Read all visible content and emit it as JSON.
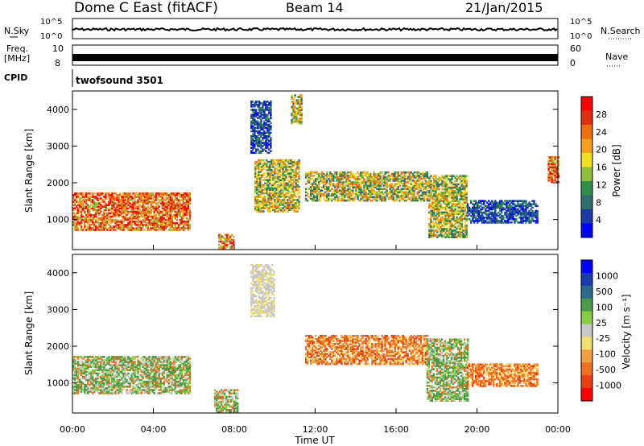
{
  "header": {
    "station": "Dome C East (fitACF)",
    "beam": "Beam 14",
    "date": "21/Jan/2015"
  },
  "top_panels": {
    "nsky_label": "N.Sky",
    "nsearch_label": "N.Search",
    "log_high": "10^5",
    "log_low": "10^0",
    "freq_label": "Freq.",
    "freq_unit": "[MHz]",
    "freq_high": "10",
    "freq_low": "8",
    "nave_high": "60",
    "nave_low": "0",
    "nave_label": "Nave",
    "cpid_label": "CPID",
    "cpid_value": "twofsound 3501"
  },
  "colors": {
    "power": [
      "#0000ff",
      "#1a3aa8",
      "#2e6e6e",
      "#2f8f4a",
      "#8fbf3a",
      "#f0e020",
      "#f5a020",
      "#f07010",
      "#e03010",
      "#ff0000"
    ],
    "velocity": [
      "#ff0000",
      "#e84010",
      "#ee7020",
      "#f0a040",
      "#f0e070",
      "#c8c8c8",
      "#88cc44",
      "#4a9a4a",
      "#2a6a8a",
      "#1a3ab0",
      "#0000ff"
    ]
  },
  "chart_data": [
    {
      "type": "heatmap",
      "ylabel": "Slant Range [km]",
      "xlabel": "Time UT",
      "x_ticks": [
        "00:00",
        "04:00",
        "08:00",
        "12:00",
        "16:00",
        "20:00",
        "00:00"
      ],
      "xlim_hours": [
        0,
        24
      ],
      "y_ticks": [
        1000,
        2000,
        3000,
        4000
      ],
      "ylim": [
        180,
        4500
      ],
      "colorbar_label": "Power [dB]",
      "colorbar_ticks": [
        "4",
        "8",
        "12",
        "16",
        "20",
        "24",
        "28"
      ],
      "regions": [
        {
          "t0": 0.0,
          "t1": 5.8,
          "r0": 700,
          "r1": 1700,
          "level": "high"
        },
        {
          "t0": 7.2,
          "t1": 8.0,
          "r0": 200,
          "r1": 600,
          "level": "high"
        },
        {
          "t0": 9.0,
          "t1": 11.2,
          "r0": 1200,
          "r1": 2600,
          "level": "mid"
        },
        {
          "t0": 8.8,
          "t1": 9.8,
          "r0": 2800,
          "r1": 4200,
          "level": "low"
        },
        {
          "t0": 10.8,
          "t1": 11.3,
          "r0": 3600,
          "r1": 4400,
          "level": "mid"
        },
        {
          "t0": 11.5,
          "t1": 17.5,
          "r0": 1500,
          "r1": 2300,
          "level": "mid"
        },
        {
          "t0": 17.6,
          "t1": 19.5,
          "r0": 500,
          "r1": 2200,
          "level": "mid"
        },
        {
          "t0": 19.5,
          "t1": 23.0,
          "r0": 900,
          "r1": 1500,
          "level": "low"
        },
        {
          "t0": 23.5,
          "t1": 24.0,
          "r0": 2000,
          "r1": 2700,
          "level": "high"
        }
      ]
    },
    {
      "type": "heatmap",
      "ylabel": "Slant Range [km]",
      "xlabel": "Time UT",
      "x_ticks": [
        "00:00",
        "04:00",
        "08:00",
        "12:00",
        "16:00",
        "20:00",
        "00:00"
      ],
      "xlim_hours": [
        0,
        24
      ],
      "y_ticks": [
        1000,
        2000,
        3000,
        4000
      ],
      "ylim": [
        180,
        4500
      ],
      "colorbar_label": "Velocity [m s⁻¹]",
      "colorbar_ticks": [
        "1000",
        "500",
        "100",
        "25",
        "-25",
        "-100",
        "-500",
        "-1000"
      ],
      "regions": [
        {
          "t0": 0.0,
          "t1": 5.8,
          "r0": 700,
          "r1": 1700,
          "level": "green"
        },
        {
          "t0": 7.0,
          "t1": 8.2,
          "r0": 200,
          "r1": 800,
          "level": "green"
        },
        {
          "t0": 8.8,
          "t1": 10.0,
          "r0": 2800,
          "r1": 4200,
          "level": "grey"
        },
        {
          "t0": 11.5,
          "t1": 17.5,
          "r0": 1500,
          "r1": 2300,
          "level": "orange"
        },
        {
          "t0": 17.5,
          "t1": 19.5,
          "r0": 500,
          "r1": 2200,
          "level": "green"
        },
        {
          "t0": 19.5,
          "t1": 23.0,
          "r0": 900,
          "r1": 1500,
          "level": "orange"
        }
      ]
    }
  ]
}
